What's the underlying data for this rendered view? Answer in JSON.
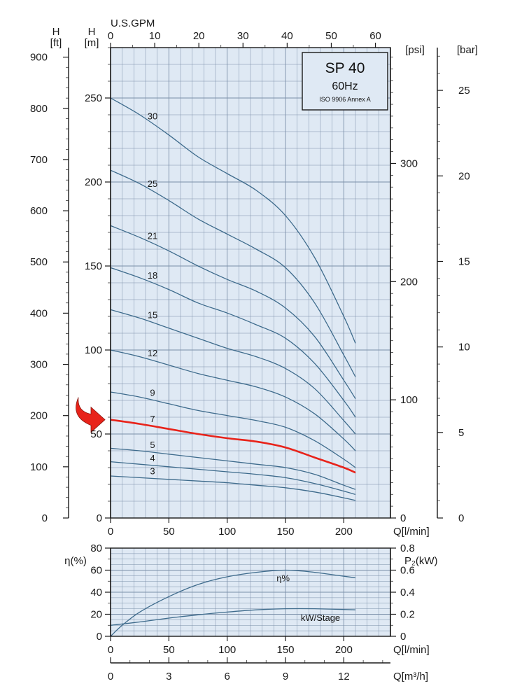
{
  "chart_data": [
    {
      "type": "line",
      "name": "head-curves",
      "title_box": {
        "title": "SP 40",
        "frequency": "60Hz",
        "standard": "ISO 9906 Annex A"
      },
      "x_axis": {
        "label": "Q[l/min]",
        "range": [
          0,
          240
        ],
        "ticks": [
          0,
          50,
          100,
          150,
          200
        ]
      },
      "x_top_axis": {
        "label": "U.S.GPM",
        "range": [
          0,
          63.4
        ],
        "ticks": [
          0,
          10,
          20,
          30,
          40,
          50,
          60
        ]
      },
      "y_axis_m": {
        "label": "H",
        "unit": "[m]",
        "range": [
          0,
          280
        ],
        "ticks": [
          0,
          50,
          100,
          150,
          200,
          250
        ]
      },
      "y_axis_ft": {
        "label": "H",
        "unit": "[ft]",
        "range": [
          0,
          918.6
        ],
        "ticks": [
          0,
          100,
          200,
          300,
          400,
          500,
          600,
          700,
          800,
          900
        ]
      },
      "y_axis_psi": {
        "unit": "[psi]",
        "range": [
          0,
          398
        ],
        "ticks": [
          0,
          100,
          200,
          300
        ]
      },
      "y_axis_bar": {
        "unit": "[bar]",
        "range": [
          0,
          27.5
        ],
        "ticks": [
          0,
          5,
          10,
          15,
          20,
          25
        ]
      },
      "grid": true,
      "highlight_stage": "7",
      "series": [
        {
          "name": "30",
          "highlight": false,
          "x": [
            0,
            25,
            50,
            75,
            100,
            125,
            150,
            175,
            200,
            210
          ],
          "y": [
            250,
            240,
            228,
            215,
            205,
            195,
            180,
            155,
            120,
            104
          ]
        },
        {
          "name": "25",
          "highlight": false,
          "x": [
            0,
            25,
            50,
            75,
            100,
            125,
            150,
            175,
            200,
            210
          ],
          "y": [
            207,
            199,
            189,
            178,
            169,
            160,
            149,
            128,
            97,
            84
          ]
        },
        {
          "name": "21",
          "highlight": false,
          "x": [
            0,
            25,
            50,
            75,
            100,
            125,
            150,
            175,
            200,
            210
          ],
          "y": [
            174,
            167,
            159,
            150,
            142,
            135,
            125,
            108,
            82,
            71
          ]
        },
        {
          "name": "18",
          "highlight": false,
          "x": [
            0,
            25,
            50,
            75,
            100,
            125,
            150,
            175,
            200,
            210
          ],
          "y": [
            149,
            143,
            136,
            128,
            122,
            115,
            107,
            92,
            70,
            60
          ]
        },
        {
          "name": "15",
          "highlight": false,
          "x": [
            0,
            25,
            50,
            75,
            100,
            125,
            150,
            175,
            200,
            210
          ],
          "y": [
            124,
            119,
            113,
            107,
            101,
            96,
            89,
            77,
            58,
            50
          ]
        },
        {
          "name": "12",
          "highlight": false,
          "x": [
            0,
            25,
            50,
            75,
            100,
            125,
            150,
            175,
            200,
            210
          ],
          "y": [
            100,
            96,
            91,
            86,
            82,
            78,
            72,
            62,
            47,
            40
          ]
        },
        {
          "name": "9",
          "highlight": false,
          "x": [
            0,
            25,
            50,
            75,
            100,
            125,
            150,
            175,
            200,
            210
          ],
          "y": [
            75,
            72,
            68,
            64,
            61,
            58,
            54,
            46,
            35,
            30
          ]
        },
        {
          "name": "7",
          "highlight": true,
          "x": [
            0,
            25,
            50,
            75,
            100,
            125,
            150,
            175,
            200,
            210
          ],
          "y": [
            58.5,
            56,
            53,
            50,
            47.5,
            45.5,
            42,
            36,
            30,
            27
          ]
        },
        {
          "name": "5",
          "highlight": false,
          "x": [
            0,
            25,
            50,
            75,
            100,
            125,
            150,
            175,
            200,
            210
          ],
          "y": [
            41.5,
            40,
            38,
            36,
            34,
            32,
            30,
            26,
            19.5,
            17
          ]
        },
        {
          "name": "4",
          "highlight": false,
          "x": [
            0,
            25,
            50,
            75,
            100,
            125,
            150,
            175,
            200,
            210
          ],
          "y": [
            33.5,
            32,
            30.5,
            29,
            27.5,
            26,
            24,
            20.5,
            16,
            14
          ]
        },
        {
          "name": "3",
          "highlight": false,
          "x": [
            0,
            25,
            50,
            75,
            100,
            125,
            150,
            175,
            200,
            210
          ],
          "y": [
            25,
            24,
            23,
            22,
            21,
            19.5,
            18,
            15.5,
            12,
            10.5
          ]
        }
      ]
    },
    {
      "type": "line",
      "name": "efficiency-power",
      "x_axis": {
        "label": "Q[l/min]",
        "range": [
          0,
          240
        ],
        "ticks": [
          0,
          50,
          100,
          150,
          200
        ]
      },
      "x_bottom_axis": {
        "label": "Q[m³/h]",
        "range": [
          0,
          14.4
        ],
        "ticks": [
          0,
          3,
          6,
          9,
          12
        ]
      },
      "y_left_axis": {
        "label": "η(%)",
        "range": [
          0,
          80
        ],
        "ticks": [
          0,
          20,
          40,
          60,
          80
        ]
      },
      "y_right_axis": {
        "label": "P₂(kW)",
        "range": [
          0,
          0.8
        ],
        "ticks": [
          0,
          0.2,
          0.4,
          0.6,
          0.8
        ]
      },
      "grid": true,
      "series": [
        {
          "name": "η%",
          "axis": "left",
          "x": [
            0,
            10,
            25,
            50,
            75,
            100,
            125,
            150,
            175,
            210
          ],
          "y": [
            0,
            10,
            22,
            36,
            47,
            54,
            58,
            60,
            58,
            53
          ]
        },
        {
          "name": "kW/Stage",
          "axis": "right",
          "x": [
            0,
            25,
            50,
            75,
            100,
            125,
            150,
            175,
            210
          ],
          "y": [
            0.1,
            0.13,
            0.165,
            0.195,
            0.22,
            0.24,
            0.25,
            0.25,
            0.24
          ]
        }
      ]
    }
  ]
}
